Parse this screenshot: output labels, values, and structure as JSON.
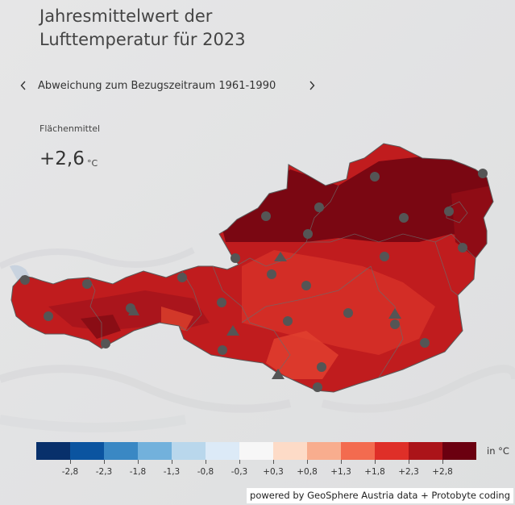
{
  "title_line1": "Jahresmittelwert der",
  "title_line2": "Lufttemperatur für 2023",
  "nav": {
    "label": "Abweichung zum Bezugszeitraum 1961-1990"
  },
  "stat": {
    "label": "Flächenmittel",
    "value": "+2,6",
    "unit": "°C"
  },
  "legend": {
    "unit": "in °C",
    "colors": [
      "#08306b",
      "#0b54a0",
      "#3a88c4",
      "#72b1dc",
      "#b9d7ec",
      "#dceaf7",
      "#f7f7f7",
      "#fddbc7",
      "#f8ad8e",
      "#f36b4f",
      "#df2f28",
      "#ab1419",
      "#6b0010"
    ],
    "ticks": [
      "-2,8",
      "-2,3",
      "-1,8",
      "-1,3",
      "-0,8",
      "-0,3",
      "+0,3",
      "+0,8",
      "+1,3",
      "+1,8",
      "+2,3",
      "+2,8"
    ]
  },
  "credit": "powered by GeoSphere Austria data + Protobyte coding"
}
